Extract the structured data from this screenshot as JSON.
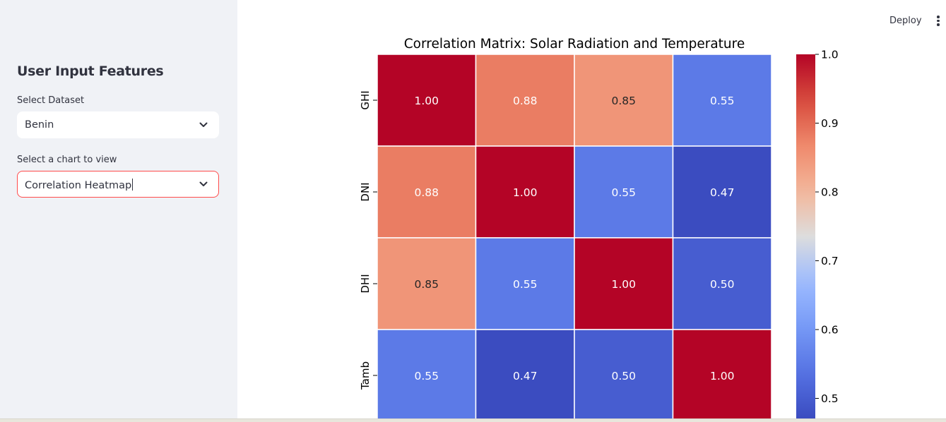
{
  "sidebar": {
    "title": "User Input Features",
    "dataset_label": "Select Dataset",
    "dataset_value": "Benin",
    "chart_label": "Select a chart to view",
    "chart_value": "Correlation Heatmap"
  },
  "header": {
    "deploy_label": "Deploy",
    "menu_icon": "more-vertical-icon"
  },
  "icons": {
    "dropdown": "chevron-down-icon"
  },
  "colors": {
    "sidebar_bg": "#f0f2f6",
    "focus_border": "#ff4b4b",
    "heatmap_high": "#b40426",
    "heatmap_low": "#3b4cc0"
  },
  "chart_data": {
    "type": "heatmap",
    "title": "Correlation Matrix: Solar Radiation and Temperature",
    "row_labels": [
      "GHI",
      "DNI",
      "DHI",
      "Tamb"
    ],
    "matrix": [
      [
        1.0,
        0.88,
        0.85,
        0.55
      ],
      [
        0.88,
        1.0,
        0.55,
        0.47
      ],
      [
        0.85,
        0.55,
        1.0,
        0.5
      ],
      [
        0.55,
        0.47,
        0.5,
        1.0
      ]
    ],
    "value_format": "0.00",
    "colormap": "coolwarm",
    "colorbar_ticks": [
      "1.0",
      "0.9",
      "0.8",
      "0.7",
      "0.6",
      "0.5"
    ],
    "colorbar_range": [
      0.47,
      1.0
    ]
  }
}
